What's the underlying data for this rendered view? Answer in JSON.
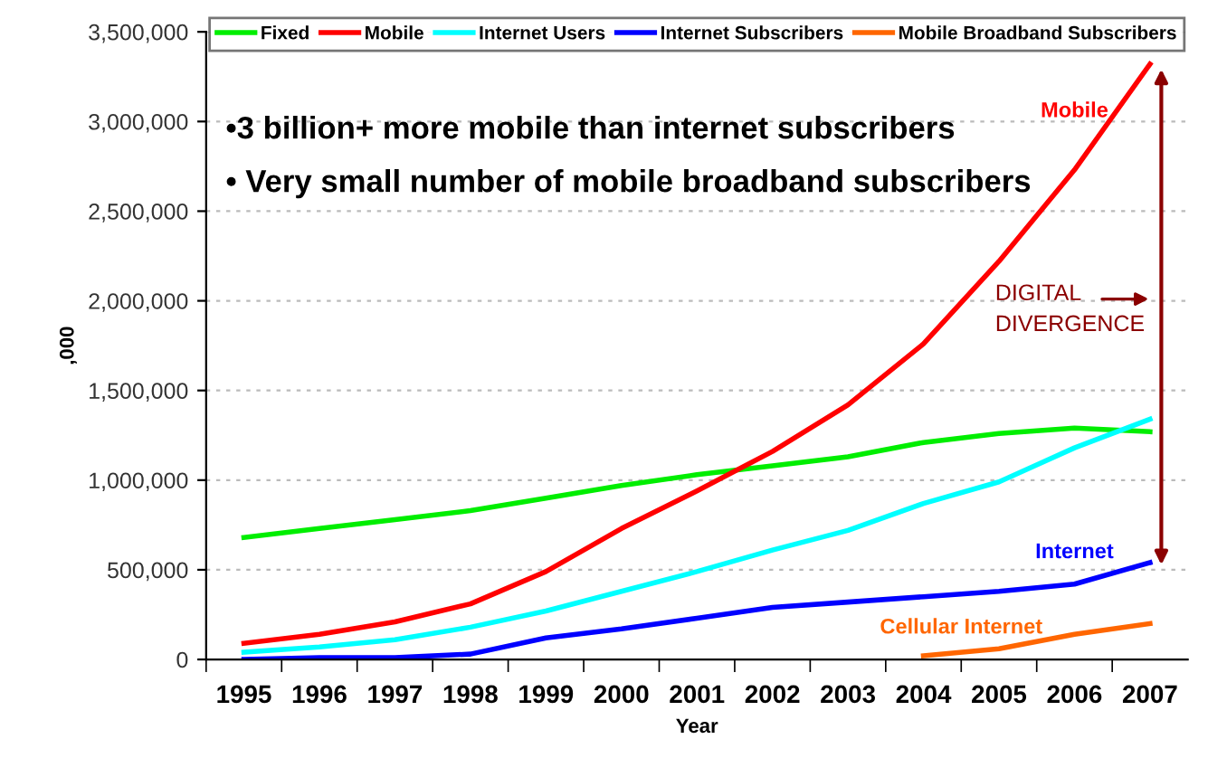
{
  "chart_data": {
    "type": "line",
    "xlabel": "Year",
    "ylabel": ",000",
    "categories": [
      "1995",
      "1996",
      "1997",
      "1998",
      "1999",
      "2000",
      "2001",
      "2002",
      "2003",
      "2004",
      "2005",
      "2006",
      "2007"
    ],
    "ylim": [
      0,
      3500000
    ],
    "yticks": [
      {
        "value": 0,
        "label": "0"
      },
      {
        "value": 500000,
        "label": "500,000"
      },
      {
        "value": 1000000,
        "label": "1,000,000"
      },
      {
        "value": 1500000,
        "label": "1,500,000"
      },
      {
        "value": 2000000,
        "label": "2,000,000"
      },
      {
        "value": 2500000,
        "label": "2,500,000"
      },
      {
        "value": 3000000,
        "label": "3,000,000"
      },
      {
        "value": 3500000,
        "label": "3,500,000"
      }
    ],
    "grid": "y",
    "legend": "top",
    "marker": "none",
    "line_style": "solid",
    "series": [
      {
        "name": "Fixed",
        "color": "#00ee00",
        "values": [
          680000,
          730000,
          780000,
          830000,
          900000,
          970000,
          1030000,
          1080000,
          1130000,
          1210000,
          1260000,
          1290000,
          1270000
        ]
      },
      {
        "name": "Mobile",
        "color": "#ff0000",
        "values": [
          90000,
          140000,
          210000,
          310000,
          490000,
          730000,
          940000,
          1160000,
          1420000,
          1760000,
          2220000,
          2730000,
          3320000
        ]
      },
      {
        "name": "Internet Users",
        "color": "#00ffff",
        "values": [
          40000,
          70000,
          110000,
          180000,
          270000,
          380000,
          490000,
          610000,
          720000,
          870000,
          990000,
          1180000,
          1340000
        ]
      },
      {
        "name": "Internet Subscribers",
        "color": "#0000ff",
        "values": [
          0,
          10000,
          10000,
          30000,
          120000,
          170000,
          230000,
          290000,
          320000,
          350000,
          380000,
          420000,
          540000
        ]
      },
      {
        "name": "Mobile Broadband Subscribers",
        "color": "#ff6600",
        "values": [
          null,
          null,
          null,
          null,
          null,
          null,
          null,
          null,
          null,
          20000,
          60000,
          140000,
          200000
        ]
      }
    ],
    "annotations": [
      "•3 billion+ more mobile than internet subscribers",
      "• Very small number of mobile broadband subscribers",
      "DIGITAL DIVERGENCE",
      "Mobile",
      "Internet",
      "Cellular Internet"
    ]
  }
}
